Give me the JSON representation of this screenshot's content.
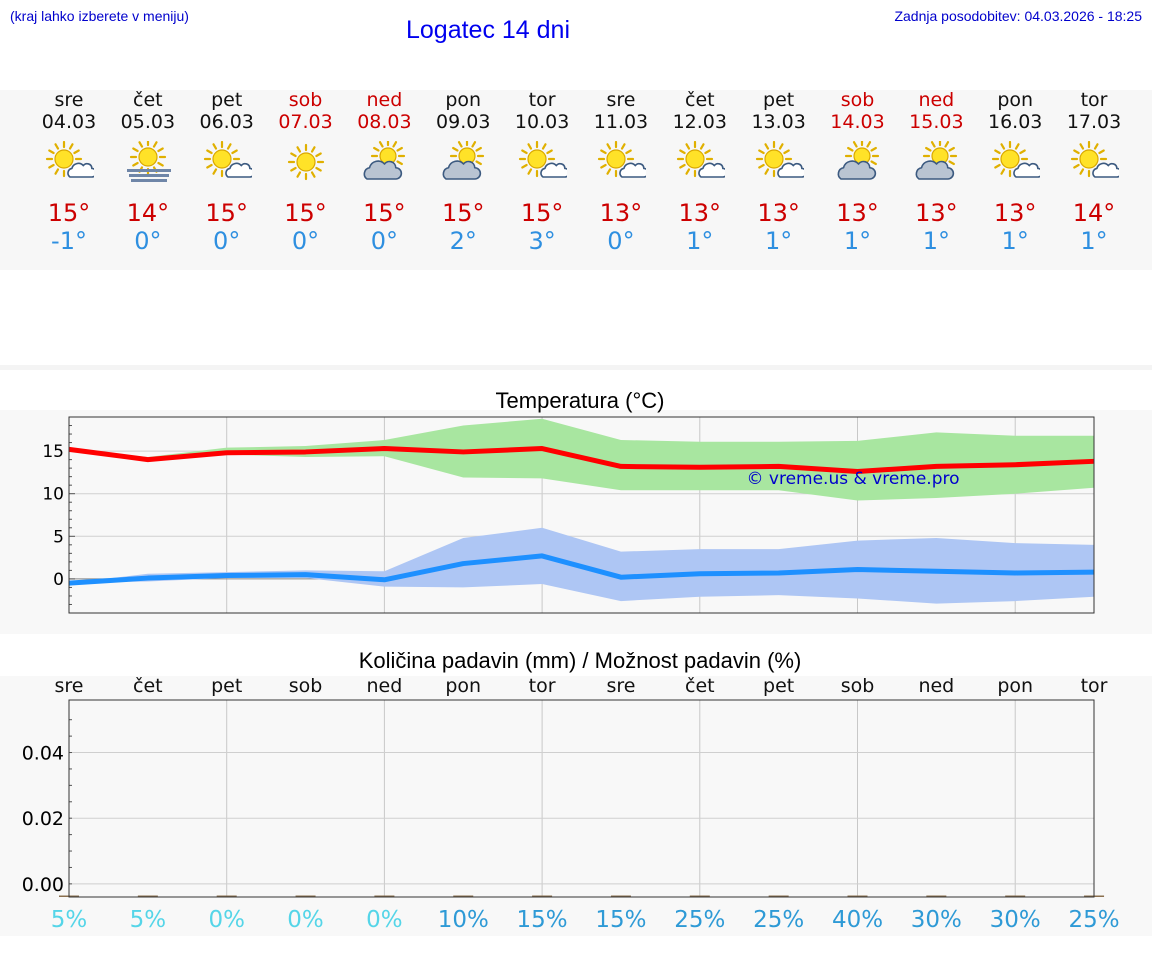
{
  "header": {
    "menu_note": "(kraj lahko izberete v meniju)",
    "title": "Logatec 14 dni",
    "last_update": "Zadnja posodobitev: 04.03.2026 - 18:25"
  },
  "colors": {
    "max_line": "#ff0000",
    "min_line": "#1e90ff",
    "max_band": "#a8e6a0",
    "min_band": "#aec6f4",
    "weekend": "#cc0000",
    "pct_low": "#55d5e8",
    "pct_high": "#2e9ad6"
  },
  "days": [
    {
      "name": "sre",
      "date": "04.03",
      "icon": "sun-cloud-icon",
      "max": "15°",
      "min": "-1°",
      "weekend": false
    },
    {
      "name": "čet",
      "date": "05.03",
      "icon": "sun-fog-icon",
      "max": "14°",
      "min": "0°",
      "weekend": false
    },
    {
      "name": "pet",
      "date": "06.03",
      "icon": "sun-cloud-icon",
      "max": "15°",
      "min": "0°",
      "weekend": false
    },
    {
      "name": "sob",
      "date": "07.03",
      "icon": "sun-icon",
      "max": "15°",
      "min": "0°",
      "weekend": true
    },
    {
      "name": "ned",
      "date": "08.03",
      "icon": "cloud-sun-icon",
      "max": "15°",
      "min": "0°",
      "weekend": true
    },
    {
      "name": "pon",
      "date": "09.03",
      "icon": "cloud-sun-icon",
      "max": "15°",
      "min": "2°",
      "weekend": false
    },
    {
      "name": "tor",
      "date": "10.03",
      "icon": "sun-cloud-icon",
      "max": "15°",
      "min": "3°",
      "weekend": false
    },
    {
      "name": "sre",
      "date": "11.03",
      "icon": "sun-cloud-icon",
      "max": "13°",
      "min": "0°",
      "weekend": false
    },
    {
      "name": "čet",
      "date": "12.03",
      "icon": "sun-cloud-icon",
      "max": "13°",
      "min": "1°",
      "weekend": false
    },
    {
      "name": "pet",
      "date": "13.03",
      "icon": "sun-cloud-icon",
      "max": "13°",
      "min": "1°",
      "weekend": false
    },
    {
      "name": "sob",
      "date": "14.03",
      "icon": "cloud-sun-icon",
      "max": "13°",
      "min": "1°",
      "weekend": true
    },
    {
      "name": "ned",
      "date": "15.03",
      "icon": "cloud-sun-icon",
      "max": "13°",
      "min": "1°",
      "weekend": true
    },
    {
      "name": "pon",
      "date": "16.03",
      "icon": "sun-cloud-icon",
      "max": "13°",
      "min": "1°",
      "weekend": false
    },
    {
      "name": "tor",
      "date": "17.03",
      "icon": "sun-cloud-icon",
      "max": "14°",
      "min": "1°",
      "weekend": false
    }
  ],
  "chart_data": [
    {
      "type": "line",
      "title": "Temperatura (°C)",
      "ylim": [
        -4,
        19
      ],
      "yticks": [
        0,
        5,
        10,
        15
      ],
      "x": [
        0,
        1,
        2,
        3,
        4,
        5,
        6,
        7,
        8,
        9,
        10,
        11,
        12,
        13
      ],
      "series": [
        {
          "name": "max",
          "values": [
            15.2,
            14.0,
            14.8,
            14.9,
            15.3,
            14.9,
            15.3,
            13.2,
            13.1,
            13.2,
            12.6,
            13.2,
            13.4,
            13.8
          ]
        },
        {
          "name": "max_low",
          "values": [
            15.2,
            13.8,
            14.6,
            14.3,
            14.4,
            11.9,
            11.8,
            10.4,
            10.4,
            10.4,
            9.2,
            9.5,
            10.0,
            10.7
          ]
        },
        {
          "name": "max_high",
          "values": [
            15.2,
            14.3,
            15.4,
            15.6,
            16.3,
            18.0,
            18.8,
            16.3,
            16.1,
            16.1,
            16.2,
            17.2,
            16.8,
            16.8
          ]
        },
        {
          "name": "min",
          "values": [
            -0.5,
            0.1,
            0.4,
            0.5,
            -0.1,
            1.8,
            2.7,
            0.2,
            0.6,
            0.7,
            1.1,
            0.9,
            0.7,
            0.8
          ]
        },
        {
          "name": "min_low",
          "values": [
            -0.5,
            -0.3,
            0.1,
            0.1,
            -0.9,
            -1.0,
            -0.6,
            -2.6,
            -2.1,
            -1.9,
            -2.3,
            -2.9,
            -2.6,
            -2.1
          ]
        },
        {
          "name": "min_high",
          "values": [
            -0.5,
            0.6,
            0.8,
            1.0,
            0.9,
            4.8,
            6.0,
            3.2,
            3.5,
            3.5,
            4.5,
            4.8,
            4.2,
            4.0
          ]
        }
      ],
      "watermark": "© vreme.us & vreme.pro"
    },
    {
      "type": "bar",
      "title": "Količina padavin (mm) / Možnost padavin (%)",
      "ylim": [
        -0.004,
        0.056
      ],
      "yticks": [
        "0.00",
        "0.02",
        "0.04"
      ],
      "ytick_values": [
        0,
        0.02,
        0.04
      ],
      "categories": [
        "sre",
        "čet",
        "pet",
        "sob",
        "ned",
        "pon",
        "tor",
        "sre",
        "čet",
        "pet",
        "sob",
        "ned",
        "pon",
        "tor"
      ],
      "values": [
        0,
        0,
        0,
        0,
        0,
        0,
        0,
        0,
        0,
        0,
        0,
        0,
        0,
        0
      ],
      "chance_labels": [
        "5%",
        "5%",
        "0%",
        "0%",
        "0%",
        "10%",
        "15%",
        "15%",
        "25%",
        "25%",
        "40%",
        "30%",
        "30%",
        "25%"
      ],
      "chance_values": [
        5,
        5,
        0,
        0,
        0,
        10,
        15,
        15,
        25,
        25,
        40,
        30,
        30,
        25
      ]
    }
  ]
}
